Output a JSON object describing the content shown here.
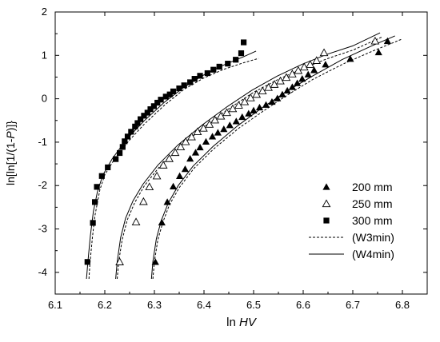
{
  "chart_data": {
    "type": "scatter",
    "xlabel_prefix": "ln ",
    "xlabel_italic": "HV",
    "ylabel_parts": [
      "ln[ln[1/(1-",
      "P",
      ")]}"
    ],
    "xlim": [
      6.1,
      6.85
    ],
    "ylim": [
      -4.5,
      2
    ],
    "x_ticks": [
      "6.1",
      "6.2",
      "6.3",
      "6.4",
      "6.5",
      "6.6",
      "6.7",
      "6.8"
    ],
    "y_ticks": [
      "-4",
      "-3",
      "-2",
      "-1",
      "0",
      "1",
      "2"
    ],
    "legend_position": "lower-right",
    "series": [
      {
        "name": "200 mm",
        "marker": "triangle-filled",
        "points": [
          [
            6.302,
            -3.76
          ],
          [
            6.315,
            -2.85
          ],
          [
            6.326,
            -2.38
          ],
          [
            6.338,
            -2.02
          ],
          [
            6.351,
            -1.78
          ],
          [
            6.362,
            -1.62
          ],
          [
            6.372,
            -1.38
          ],
          [
            6.383,
            -1.24
          ],
          [
            6.392,
            -1.12
          ],
          [
            6.404,
            -0.99
          ],
          [
            6.417,
            -0.87
          ],
          [
            6.428,
            -0.78
          ],
          [
            6.44,
            -0.7
          ],
          [
            6.452,
            -0.61
          ],
          [
            6.465,
            -0.52
          ],
          [
            6.477,
            -0.42
          ],
          [
            6.49,
            -0.34
          ],
          [
            6.5,
            -0.27
          ],
          [
            6.512,
            -0.2
          ],
          [
            6.525,
            -0.14
          ],
          [
            6.537,
            -0.07
          ],
          [
            6.548,
            0.01
          ],
          [
            6.558,
            0.1
          ],
          [
            6.568,
            0.19
          ],
          [
            6.578,
            0.27
          ],
          [
            6.588,
            0.36
          ],
          [
            6.598,
            0.46
          ],
          [
            6.61,
            0.56
          ],
          [
            6.622,
            0.66
          ],
          [
            6.645,
            0.79
          ],
          [
            6.695,
            0.92
          ],
          [
            6.752,
            1.07
          ],
          [
            6.77,
            1.33
          ]
        ]
      },
      {
        "name": "250 mm",
        "marker": "triangle-open",
        "points": [
          [
            6.23,
            -3.76
          ],
          [
            6.263,
            -2.84
          ],
          [
            6.278,
            -2.37
          ],
          [
            6.29,
            -2.03
          ],
          [
            6.305,
            -1.78
          ],
          [
            6.318,
            -1.53
          ],
          [
            6.33,
            -1.38
          ],
          [
            6.342,
            -1.24
          ],
          [
            6.353,
            -1.11
          ],
          [
            6.363,
            -0.99
          ],
          [
            6.375,
            -0.88
          ],
          [
            6.387,
            -0.76
          ],
          [
            6.399,
            -0.68
          ],
          [
            6.411,
            -0.59
          ],
          [
            6.422,
            -0.49
          ],
          [
            6.434,
            -0.4
          ],
          [
            6.446,
            -0.32
          ],
          [
            6.458,
            -0.23
          ],
          [
            6.47,
            -0.15
          ],
          [
            6.482,
            -0.07
          ],
          [
            6.494,
            0.02
          ],
          [
            6.506,
            0.1
          ],
          [
            6.518,
            0.18
          ],
          [
            6.53,
            0.26
          ],
          [
            6.542,
            0.33
          ],
          [
            6.554,
            0.41
          ],
          [
            6.566,
            0.49
          ],
          [
            6.578,
            0.57
          ],
          [
            6.59,
            0.65
          ],
          [
            6.602,
            0.73
          ],
          [
            6.614,
            0.79
          ],
          [
            6.627,
            0.88
          ],
          [
            6.642,
            1.06
          ],
          [
            6.745,
            1.33
          ]
        ]
      },
      {
        "name": "300 mm",
        "marker": "square-filled",
        "points": [
          [
            6.165,
            -3.76
          ],
          [
            6.176,
            -2.86
          ],
          [
            6.18,
            -2.38
          ],
          [
            6.184,
            -2.03
          ],
          [
            6.194,
            -1.78
          ],
          [
            6.206,
            -1.58
          ],
          [
            6.222,
            -1.39
          ],
          [
            6.23,
            -1.25
          ],
          [
            6.236,
            -1.11
          ],
          [
            6.24,
            -0.98
          ],
          [
            6.246,
            -0.87
          ],
          [
            6.253,
            -0.76
          ],
          [
            6.261,
            -0.64
          ],
          [
            6.266,
            -0.56
          ],
          [
            6.272,
            -0.47
          ],
          [
            6.279,
            -0.39
          ],
          [
            6.286,
            -0.32
          ],
          [
            6.292,
            -0.24
          ],
          [
            6.299,
            -0.17
          ],
          [
            6.306,
            -0.09
          ],
          [
            6.313,
            -0.02
          ],
          [
            6.323,
            0.05
          ],
          [
            6.331,
            0.1
          ],
          [
            6.338,
            0.17
          ],
          [
            6.35,
            0.24
          ],
          [
            6.36,
            0.31
          ],
          [
            6.372,
            0.38
          ],
          [
            6.381,
            0.46
          ],
          [
            6.392,
            0.53
          ],
          [
            6.407,
            0.59
          ],
          [
            6.419,
            0.67
          ],
          [
            6.431,
            0.74
          ],
          [
            6.448,
            0.81
          ],
          [
            6.464,
            0.9
          ],
          [
            6.475,
            1.05
          ],
          [
            6.48,
            1.3
          ]
        ]
      },
      {
        "name": "(W3min)",
        "style": "dashed",
        "curves": [
          [
            [
              6.168,
              -4.15
            ],
            [
              6.17,
              -3.8
            ],
            [
              6.175,
              -3.2
            ],
            [
              6.18,
              -2.7
            ],
            [
              6.19,
              -2.1
            ],
            [
              6.2,
              -1.75
            ],
            [
              6.22,
              -1.38
            ],
            [
              6.25,
              -0.95
            ],
            [
              6.28,
              -0.58
            ],
            [
              6.32,
              -0.15
            ],
            [
              6.36,
              0.22
            ],
            [
              6.4,
              0.48
            ],
            [
              6.44,
              0.68
            ],
            [
              6.48,
              0.83
            ],
            [
              6.51,
              0.93
            ]
          ],
          [
            [
              6.225,
              -4.15
            ],
            [
              6.228,
              -3.75
            ],
            [
              6.235,
              -3.25
            ],
            [
              6.245,
              -2.8
            ],
            [
              6.26,
              -2.4
            ],
            [
              6.28,
              -2.0
            ],
            [
              6.31,
              -1.57
            ],
            [
              6.35,
              -1.12
            ],
            [
              6.4,
              -0.65
            ],
            [
              6.45,
              -0.23
            ],
            [
              6.5,
              0.15
            ],
            [
              6.55,
              0.45
            ],
            [
              6.6,
              0.7
            ],
            [
              6.65,
              0.93
            ],
            [
              6.7,
              1.12
            ],
            [
              6.76,
              1.43
            ]
          ],
          [
            [
              6.297,
              -4.15
            ],
            [
              6.3,
              -3.75
            ],
            [
              6.307,
              -3.25
            ],
            [
              6.317,
              -2.85
            ],
            [
              6.33,
              -2.45
            ],
            [
              6.35,
              -2.05
            ],
            [
              6.38,
              -1.6
            ],
            [
              6.42,
              -1.15
            ],
            [
              6.47,
              -0.68
            ],
            [
              6.52,
              -0.28
            ],
            [
              6.57,
              0.1
            ],
            [
              6.62,
              0.45
            ],
            [
              6.68,
              0.8
            ],
            [
              6.74,
              1.1
            ],
            [
              6.8,
              1.38
            ]
          ]
        ]
      },
      {
        "name": "(W4min)",
        "style": "solid",
        "curves": [
          [
            [
              6.163,
              -4.15
            ],
            [
              6.166,
              -3.75
            ],
            [
              6.171,
              -3.15
            ],
            [
              6.177,
              -2.6
            ],
            [
              6.185,
              -2.15
            ],
            [
              6.196,
              -1.76
            ],
            [
              6.215,
              -1.38
            ],
            [
              6.245,
              -0.92
            ],
            [
              6.28,
              -0.5
            ],
            [
              6.32,
              -0.08
            ],
            [
              6.36,
              0.27
            ],
            [
              6.4,
              0.55
            ],
            [
              6.44,
              0.78
            ],
            [
              6.48,
              0.97
            ],
            [
              6.505,
              1.1
            ]
          ],
          [
            [
              6.222,
              -4.15
            ],
            [
              6.225,
              -3.75
            ],
            [
              6.232,
              -3.2
            ],
            [
              6.242,
              -2.75
            ],
            [
              6.257,
              -2.35
            ],
            [
              6.277,
              -1.97
            ],
            [
              6.307,
              -1.53
            ],
            [
              6.347,
              -1.07
            ],
            [
              6.397,
              -0.6
            ],
            [
              6.447,
              -0.18
            ],
            [
              6.497,
              0.2
            ],
            [
              6.547,
              0.52
            ],
            [
              6.597,
              0.79
            ],
            [
              6.647,
              1.02
            ],
            [
              6.7,
              1.22
            ],
            [
              6.755,
              1.52
            ]
          ],
          [
            [
              6.294,
              -4.15
            ],
            [
              6.297,
              -3.75
            ],
            [
              6.304,
              -3.22
            ],
            [
              6.314,
              -2.8
            ],
            [
              6.328,
              -2.4
            ],
            [
              6.348,
              -2.0
            ],
            [
              6.378,
              -1.55
            ],
            [
              6.418,
              -1.1
            ],
            [
              6.468,
              -0.62
            ],
            [
              6.518,
              -0.2
            ],
            [
              6.568,
              0.18
            ],
            [
              6.618,
              0.52
            ],
            [
              6.678,
              0.9
            ],
            [
              6.738,
              1.22
            ],
            [
              6.785,
              1.45
            ]
          ]
        ]
      }
    ]
  }
}
